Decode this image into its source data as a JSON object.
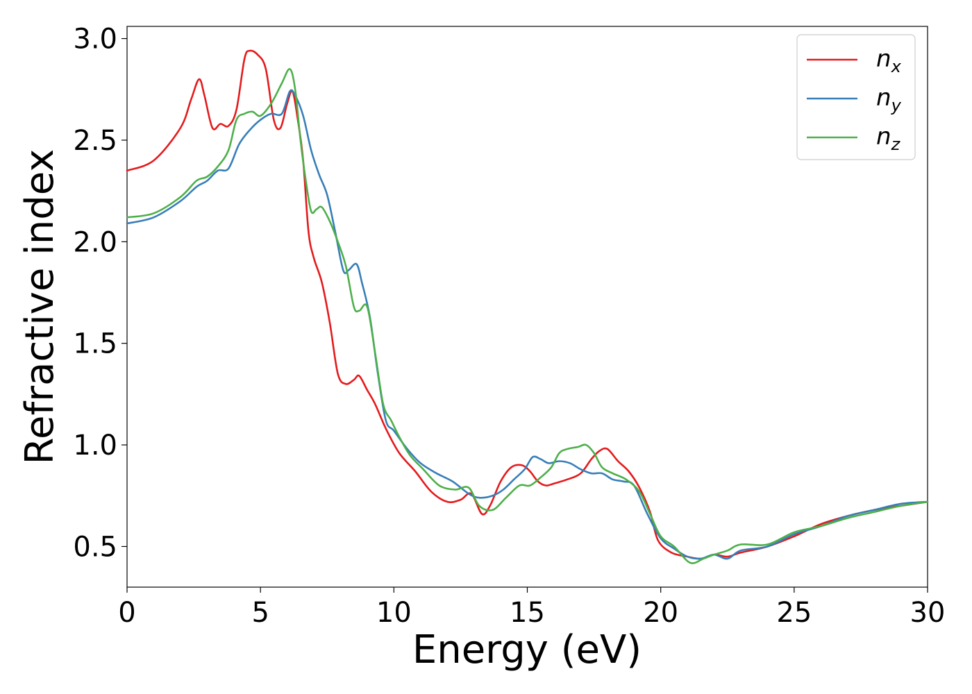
{
  "chart_data": {
    "type": "line",
    "title": "",
    "xlabel": "Energy (eV)",
    "ylabel": "Refractive index",
    "xlim": [
      0,
      30
    ],
    "ylim": [
      0.3,
      3.06
    ],
    "xticks": [
      0,
      5,
      10,
      15,
      20,
      25,
      30
    ],
    "yticks": [
      0.5,
      1.0,
      1.5,
      2.0,
      2.5,
      3.0
    ],
    "xtick_labels": [
      "0",
      "5",
      "10",
      "15",
      "20",
      "25",
      "30"
    ],
    "ytick_labels": [
      "0.5",
      "1.0",
      "1.5",
      "2.0",
      "2.5",
      "3.0"
    ],
    "grid": false,
    "legend": "top-right",
    "series": [
      {
        "name": "n",
        "sub": "x",
        "color": "#e41a1c",
        "x": [
          0,
          1,
          2,
          2.4,
          2.7,
          2.9,
          3.2,
          3.5,
          3.8,
          4.1,
          4.4,
          4.6,
          4.9,
          5.2,
          5.5,
          5.75,
          6.0,
          6.2,
          6.4,
          6.6,
          6.8,
          7.0,
          7.3,
          7.6,
          7.9,
          8.2,
          8.5,
          8.7,
          9.0,
          9.3,
          9.7,
          10.2,
          10.8,
          11.4,
          12.0,
          12.5,
          12.9,
          13.3,
          13.6,
          14.0,
          14.4,
          14.8,
          15.1,
          15.4,
          15.7,
          16.0,
          16.5,
          17.0,
          17.4,
          17.7,
          18.0,
          18.4,
          18.8,
          19.2,
          19.6,
          19.9,
          20.4,
          21.0,
          21.5,
          22.0,
          22.5,
          23.0,
          24.0,
          25.0,
          26.0,
          27.0,
          28.0,
          29.0,
          30.0
        ],
        "y": [
          2.35,
          2.4,
          2.56,
          2.7,
          2.8,
          2.72,
          2.56,
          2.58,
          2.57,
          2.65,
          2.9,
          2.94,
          2.92,
          2.85,
          2.6,
          2.56,
          2.68,
          2.74,
          2.6,
          2.4,
          2.05,
          1.92,
          1.8,
          1.6,
          1.35,
          1.3,
          1.32,
          1.34,
          1.27,
          1.2,
          1.08,
          0.96,
          0.87,
          0.77,
          0.72,
          0.73,
          0.76,
          0.66,
          0.7,
          0.82,
          0.89,
          0.9,
          0.87,
          0.82,
          0.8,
          0.81,
          0.83,
          0.86,
          0.93,
          0.97,
          0.98,
          0.92,
          0.87,
          0.79,
          0.67,
          0.53,
          0.47,
          0.45,
          0.44,
          0.46,
          0.45,
          0.47,
          0.5,
          0.55,
          0.61,
          0.65,
          0.68,
          0.7,
          0.72
        ]
      },
      {
        "name": "n",
        "sub": "y",
        "color": "#377eb8",
        "x": [
          0,
          1,
          2,
          2.6,
          3.0,
          3.4,
          3.8,
          4.2,
          4.6,
          5.0,
          5.4,
          5.8,
          6.1,
          6.3,
          6.6,
          6.9,
          7.2,
          7.5,
          7.8,
          8.1,
          8.3,
          8.6,
          8.8,
          9.1,
          9.4,
          9.7,
          10.0,
          10.5,
          11.0,
          11.6,
          12.2,
          12.8,
          13.2,
          13.7,
          14.1,
          14.5,
          14.9,
          15.2,
          15.5,
          15.8,
          16.2,
          16.6,
          17.0,
          17.4,
          17.8,
          18.2,
          18.6,
          19.0,
          19.5,
          20.0,
          20.5,
          21.0,
          21.5,
          22.0,
          22.5,
          23.0,
          24.0,
          25.0,
          26.0,
          27.0,
          28.0,
          29.0,
          30.0
        ],
        "y": [
          2.09,
          2.12,
          2.2,
          2.27,
          2.3,
          2.35,
          2.36,
          2.48,
          2.55,
          2.6,
          2.63,
          2.63,
          2.74,
          2.72,
          2.62,
          2.45,
          2.33,
          2.23,
          2.05,
          1.86,
          1.86,
          1.89,
          1.8,
          1.63,
          1.35,
          1.12,
          1.07,
          0.98,
          0.91,
          0.86,
          0.82,
          0.76,
          0.74,
          0.75,
          0.78,
          0.83,
          0.88,
          0.94,
          0.93,
          0.91,
          0.92,
          0.91,
          0.88,
          0.86,
          0.86,
          0.83,
          0.82,
          0.8,
          0.66,
          0.54,
          0.49,
          0.45,
          0.44,
          0.46,
          0.44,
          0.48,
          0.5,
          0.56,
          0.6,
          0.65,
          0.68,
          0.71,
          0.72
        ]
      },
      {
        "name": "n",
        "sub": "z",
        "color": "#4daf4a",
        "x": [
          0,
          1,
          2,
          2.6,
          3.0,
          3.4,
          3.8,
          4.1,
          4.4,
          4.7,
          5.0,
          5.4,
          5.8,
          6.1,
          6.3,
          6.5,
          6.7,
          6.9,
          7.1,
          7.3,
          7.6,
          7.9,
          8.2,
          8.5,
          8.7,
          9.0,
          9.3,
          9.6,
          9.9,
          10.2,
          10.6,
          11.1,
          11.7,
          12.3,
          12.8,
          13.2,
          13.7,
          14.2,
          14.7,
          15.1,
          15.5,
          15.9,
          16.2,
          16.5,
          16.9,
          17.2,
          17.5,
          17.8,
          18.2,
          18.7,
          19.2,
          19.6,
          20.0,
          20.5,
          21.1,
          21.6,
          22.0,
          22.5,
          23.0,
          24.0,
          25.0,
          26.0,
          27.0,
          28.0,
          29.0,
          30.0
        ],
        "y": [
          2.12,
          2.14,
          2.22,
          2.3,
          2.32,
          2.37,
          2.45,
          2.6,
          2.63,
          2.64,
          2.62,
          2.68,
          2.78,
          2.85,
          2.75,
          2.5,
          2.3,
          2.15,
          2.16,
          2.17,
          2.1,
          2.0,
          1.88,
          1.68,
          1.66,
          1.68,
          1.45,
          1.2,
          1.12,
          1.04,
          0.95,
          0.88,
          0.8,
          0.78,
          0.79,
          0.7,
          0.68,
          0.74,
          0.8,
          0.8,
          0.84,
          0.89,
          0.96,
          0.98,
          0.99,
          1.0,
          0.96,
          0.89,
          0.86,
          0.83,
          0.77,
          0.66,
          0.55,
          0.5,
          0.42,
          0.44,
          0.46,
          0.48,
          0.51,
          0.51,
          0.57,
          0.6,
          0.64,
          0.67,
          0.7,
          0.72
        ]
      }
    ]
  }
}
